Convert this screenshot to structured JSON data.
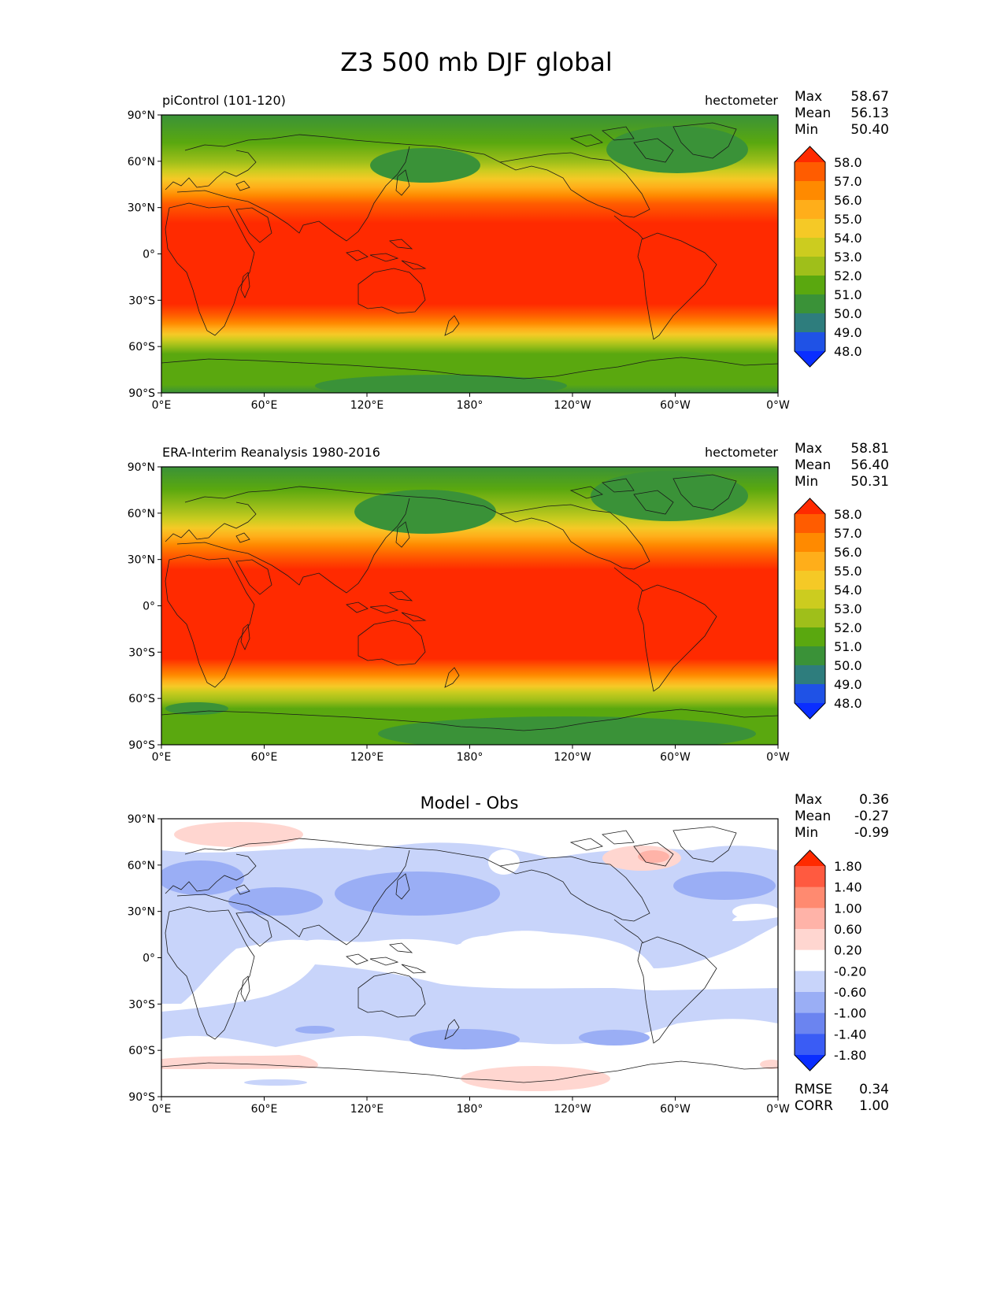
{
  "title": "Z3 500 mb DJF global",
  "axes": {
    "lat_ticks": [
      "90°N",
      "60°N",
      "30°N",
      "0°",
      "30°S",
      "60°S",
      "90°S"
    ],
    "lon_ticks": [
      "0°E",
      "60°E",
      "120°E",
      "180°",
      "120°W",
      "60°W",
      "0°W"
    ]
  },
  "stat_labels": {
    "max": "Max",
    "mean": "Mean",
    "min": "Min",
    "rmse": "RMSE",
    "corr": "CORR"
  },
  "panels": [
    {
      "id": "model",
      "left_title": "piControl (101-120)",
      "center_title": "",
      "right_title": "hectometer",
      "stats": {
        "max": "58.67",
        "mean": "56.13",
        "min": "50.40"
      },
      "colorbar": {
        "levels": [
          "58.0",
          "57.0",
          "56.0",
          "55.0",
          "54.0",
          "53.0",
          "52.0",
          "51.0",
          "50.0",
          "49.0",
          "48.0"
        ],
        "colors": [
          "#ff2a00",
          "#ff5c00",
          "#ff8a00",
          "#ffae1a",
          "#f5c926",
          "#cccc1f",
          "#9fbf1a",
          "#5aa80f",
          "#3a9238",
          "#2e7d7d",
          "#1f52e6",
          "#0a2eff"
        ]
      }
    },
    {
      "id": "obs",
      "left_title": "ERA-Interim Reanalysis 1980-2016",
      "center_title": "",
      "right_title": "hectometer",
      "stats": {
        "max": "58.81",
        "mean": "56.40",
        "min": "50.31"
      },
      "colorbar": {
        "levels": [
          "58.0",
          "57.0",
          "56.0",
          "55.0",
          "54.0",
          "53.0",
          "52.0",
          "51.0",
          "50.0",
          "49.0",
          "48.0"
        ],
        "colors": [
          "#ff2a00",
          "#ff5c00",
          "#ff8a00",
          "#ffae1a",
          "#f5c926",
          "#cccc1f",
          "#9fbf1a",
          "#5aa80f",
          "#3a9238",
          "#2e7d7d",
          "#1f52e6",
          "#0a2eff"
        ]
      }
    },
    {
      "id": "diff",
      "left_title": "",
      "center_title": "Model - Obs",
      "right_title": "",
      "stats": {
        "max": "0.36",
        "mean": "-0.27",
        "min": "-0.99"
      },
      "rmse": "0.34",
      "corr": "1.00",
      "colorbar": {
        "levels": [
          "1.80",
          "1.40",
          "1.00",
          "0.60",
          "0.20",
          "-0.20",
          "-0.60",
          "-1.00",
          "-1.40",
          "-1.80"
        ],
        "colors": [
          "#ff2a00",
          "#ff5a40",
          "#ff8a70",
          "#ffb3a8",
          "#ffd6d0",
          "#ffffff",
          "#c8d4fa",
          "#9aaef5",
          "#6b84f0",
          "#3a5cf5",
          "#0a2eff"
        ]
      }
    }
  ]
}
